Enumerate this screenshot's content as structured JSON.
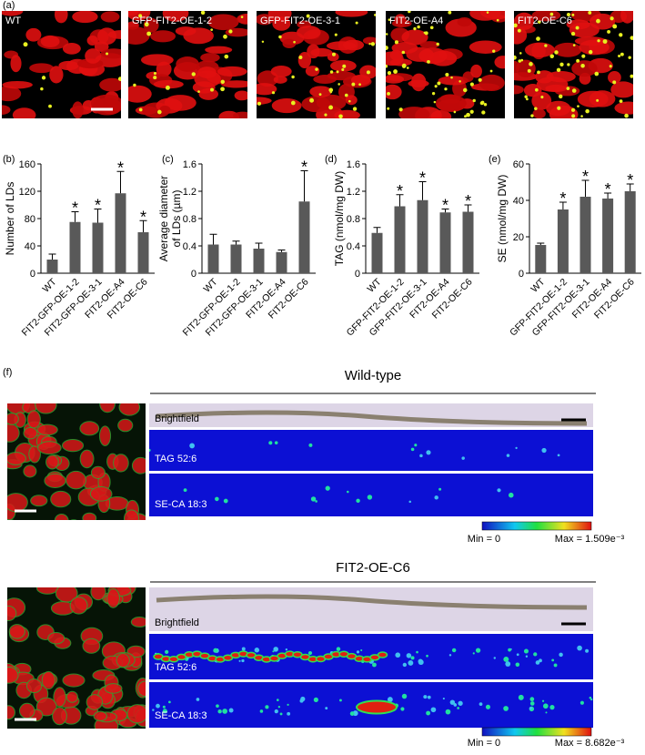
{
  "panel_a": {
    "label": "(a)",
    "images": [
      "WT",
      "GFP-FIT2-OE-1-2",
      "GFP-FIT2-OE-3-1",
      "FIT2-OE-A4",
      "FIT2-OE-C6"
    ]
  },
  "chart_data": [
    {
      "type": "bar",
      "panel": "(b)",
      "ylabel": [
        "Number of LDs"
      ],
      "categories": [
        "WT",
        "FIT2-GFP-OE-1-2",
        "FIT2-GFP-OE-3-1",
        "FIT2-OE-A4",
        "FIT2-OE-C6"
      ],
      "values": [
        20,
        75,
        74,
        117,
        60
      ],
      "errors": [
        8,
        15,
        20,
        32,
        17
      ],
      "markers": [
        null,
        "*",
        "*",
        "*",
        "*"
      ],
      "color": "#595959",
      "ylim": [
        0,
        160
      ],
      "yticks": [
        0,
        40,
        80,
        120,
        160
      ]
    },
    {
      "type": "bar",
      "panel": "(c)",
      "ylabel": [
        "Average diameter",
        "of LDs (µm)"
      ],
      "categories": [
        "WT",
        "FIT2-GFP-OE-1-2",
        "FIT2-GFP-OE-3-1",
        "FIT2-OE-A4",
        "FIT2-OE-C6"
      ],
      "values": [
        0.42,
        0.42,
        0.36,
        0.31,
        1.05
      ],
      "errors": [
        0.15,
        0.05,
        0.08,
        0.03,
        0.45
      ],
      "markers": [
        null,
        null,
        null,
        null,
        "*"
      ],
      "color": "#595959",
      "ylim": [
        0,
        1.6
      ],
      "yticks": [
        0,
        0.4,
        0.8,
        1.2,
        1.6
      ]
    },
    {
      "type": "bar",
      "panel": "(d)",
      "ylabel": [
        "TAG (nmol/mg DW)"
      ],
      "categories": [
        "WT",
        "GFP-FIT2-OE-1-2",
        "GFP-FIT2-OE-3-1",
        "FIT2-OE-A4",
        "FIT2-OE-C6"
      ],
      "values": [
        0.59,
        0.98,
        1.07,
        0.89,
        0.9
      ],
      "errors": [
        0.08,
        0.17,
        0.27,
        0.05,
        0.1
      ],
      "markers": [
        null,
        "*",
        "*",
        "*",
        "*"
      ],
      "color": "#595959",
      "ylim": [
        0,
        1.6
      ],
      "yticks": [
        0,
        0.4,
        0.8,
        1.2,
        1.6
      ]
    },
    {
      "type": "bar",
      "panel": "(e)",
      "ylabel": [
        "SE (nmol/mg DW)"
      ],
      "categories": [
        "WT",
        "GFP-FIT2-OE-1-2",
        "GFP-FIT2-OE-3-1",
        "FIT2-OE-A4",
        "FIT2-OE-C6"
      ],
      "values": [
        15.5,
        35,
        42,
        41,
        45
      ],
      "errors": [
        1,
        4,
        9,
        3,
        4
      ],
      "markers": [
        null,
        "*",
        "*",
        "*",
        "*"
      ],
      "color": "#595959",
      "ylim": [
        0,
        60
      ],
      "yticks": [
        0,
        20,
        40,
        60
      ]
    }
  ],
  "panel_f": {
    "label": "(f)",
    "groups": [
      {
        "title": "Wild-type",
        "brightfield": "Brightfield",
        "tag": "TAG 52:6",
        "se": "SE-CA 18:3",
        "min": "Min = 0",
        "max": "Max = 1.509e⁻³"
      },
      {
        "title": "FIT2-OE-C6",
        "brightfield": "Brightfield",
        "tag": "TAG 52:6",
        "se": "SE-CA 18:3",
        "min": "Min = 0",
        "max": "Max = 8.682e⁻³"
      }
    ]
  }
}
